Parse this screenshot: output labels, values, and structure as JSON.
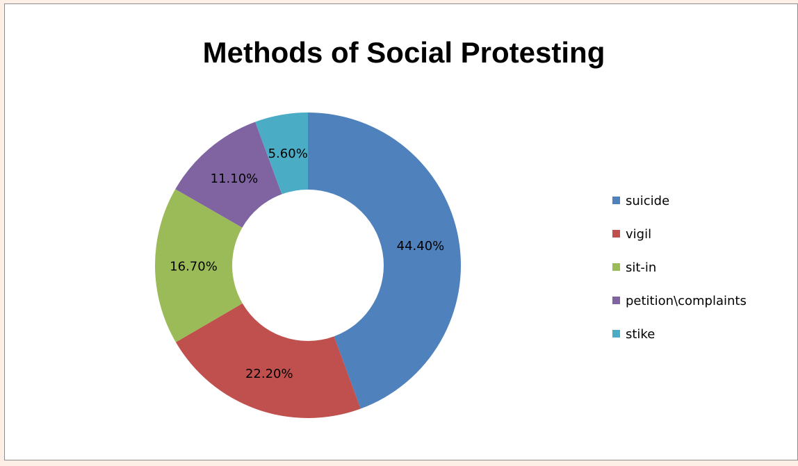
{
  "chart_data": {
    "type": "pie",
    "variant": "doughnut",
    "title": "Methods of Social Protesting",
    "categories": [
      "suicide",
      "vigil",
      "sit-in",
      "petition\\complaints",
      "stike"
    ],
    "values": [
      44.4,
      22.2,
      16.7,
      11.1,
      5.6
    ],
    "value_labels": [
      "44.40%",
      "22.20%",
      "16.70%",
      "11.10%",
      "5.60%"
    ],
    "colors": [
      "#4f81bd",
      "#c0504d",
      "#9bbb59",
      "#8064a2",
      "#4bacc6"
    ],
    "legend_position": "right",
    "start_angle": "top, clockwise"
  }
}
